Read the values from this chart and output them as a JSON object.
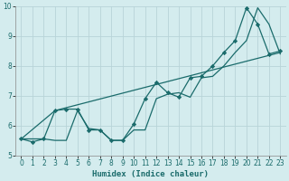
{
  "title": "",
  "xlabel": "Humidex (Indice chaleur)",
  "xlim": [
    -0.5,
    23.5
  ],
  "ylim": [
    5,
    10
  ],
  "yticks": [
    5,
    6,
    7,
    8,
    9,
    10
  ],
  "xticks": [
    0,
    1,
    2,
    3,
    4,
    5,
    6,
    7,
    8,
    9,
    10,
    11,
    12,
    13,
    14,
    15,
    16,
    17,
    18,
    19,
    20,
    21,
    22,
    23
  ],
  "bg_color": "#d4ecee",
  "grid_color": "#b8d4d8",
  "line_color": "#1a6b6b",
  "line1_x": [
    0,
    1,
    2,
    3,
    4,
    5,
    6,
    7,
    8,
    9,
    10,
    11,
    12,
    13,
    14,
    15,
    16,
    17,
    18,
    19,
    20,
    21,
    22,
    23
  ],
  "line1_y": [
    5.55,
    5.45,
    5.55,
    6.5,
    6.55,
    6.55,
    5.85,
    5.85,
    5.5,
    5.5,
    6.05,
    6.9,
    7.45,
    7.1,
    6.95,
    7.6,
    7.65,
    8.0,
    8.45,
    8.85,
    9.95,
    9.4,
    8.4,
    8.5
  ],
  "line2_x": [
    0,
    2,
    3,
    4,
    5,
    6,
    7,
    8,
    9,
    10,
    11,
    12,
    13,
    14,
    15,
    16,
    17,
    18,
    19,
    20,
    21,
    22,
    23
  ],
  "line2_y": [
    5.55,
    5.55,
    5.5,
    5.5,
    6.5,
    5.9,
    5.85,
    5.5,
    5.5,
    5.85,
    5.85,
    6.9,
    7.05,
    7.1,
    6.95,
    7.6,
    7.65,
    8.0,
    8.45,
    8.85,
    9.95,
    9.4,
    8.4
  ],
  "line3_x": [
    0,
    3,
    23
  ],
  "line3_y": [
    5.55,
    6.5,
    8.45
  ]
}
